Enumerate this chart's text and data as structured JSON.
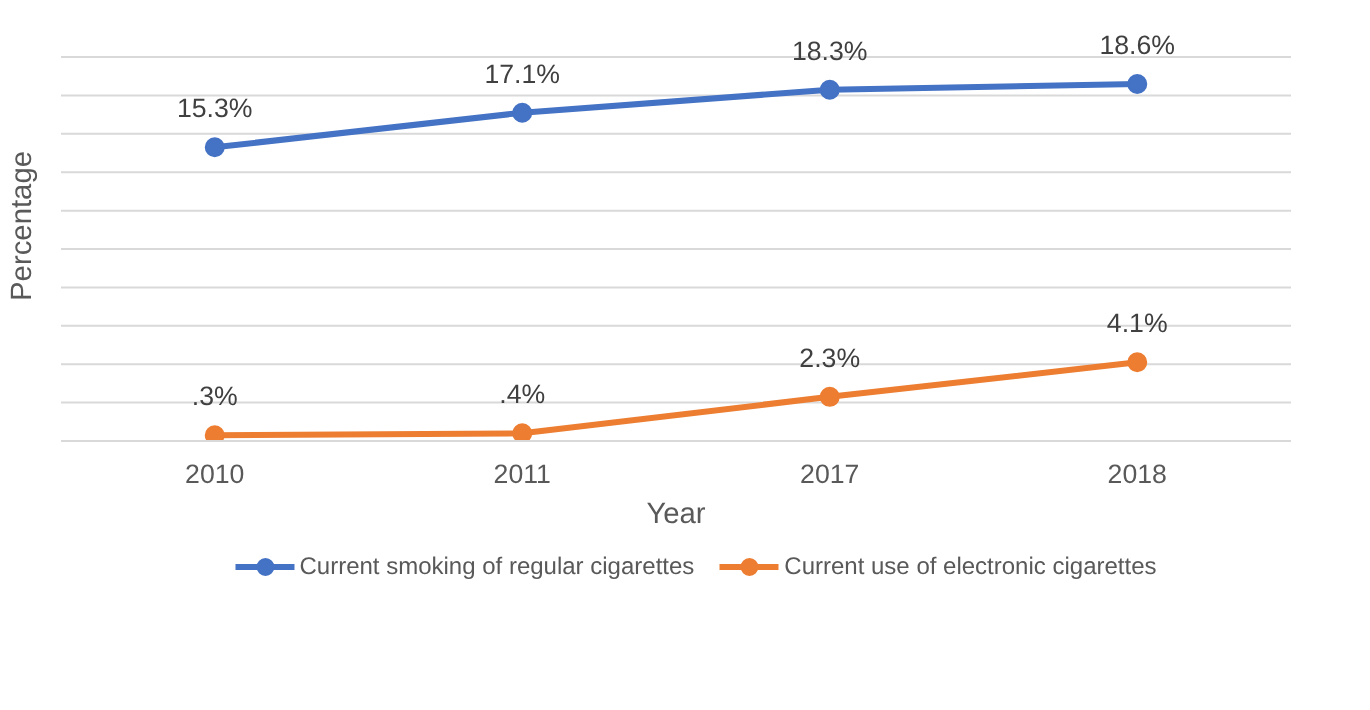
{
  "chart_data": {
    "type": "line",
    "xlabel": "Year",
    "ylabel": "Percentage",
    "categories": [
      "2010",
      "2011",
      "2017",
      "2018"
    ],
    "series": [
      {
        "name": "Current smoking of regular cigarettes",
        "color": "#4472c4",
        "values": [
          15.3,
          17.1,
          18.3,
          18.6
        ],
        "value_labels": [
          "15.3%",
          "17.1%",
          "18.3%",
          "18.6%"
        ]
      },
      {
        "name": "Current use of electronic cigarettes",
        "color": "#ed7d31",
        "values": [
          0.3,
          0.4,
          2.3,
          4.1
        ],
        "value_labels": [
          ".3%",
          ".4%",
          "2.3%",
          "4.1%"
        ]
      }
    ],
    "ylim": [
      0,
      20
    ],
    "yticks": [
      {
        "value": 0,
        "label": null
      },
      {
        "value": 2,
        "label": null
      },
      {
        "value": 4,
        "label": null
      },
      {
        "value": 6,
        "label": null
      },
      {
        "value": 8,
        "label": null
      },
      {
        "value": 10,
        "label": null
      },
      {
        "value": 12,
        "label": null
      },
      {
        "value": 14,
        "label": null
      },
      {
        "value": 16,
        "label": null
      },
      {
        "value": 18,
        "label": null
      },
      {
        "value": 20,
        "label": null
      }
    ],
    "tick_labels": "x",
    "grid": "y",
    "legend": "bottom",
    "marker": "circle",
    "line_style": "solid"
  }
}
